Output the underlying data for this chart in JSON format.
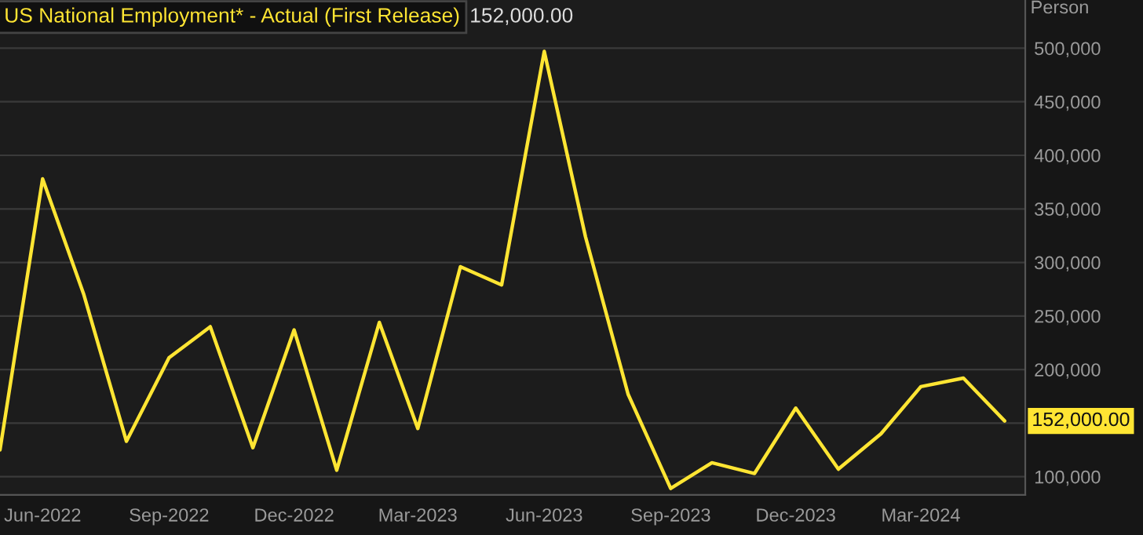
{
  "chart_data": {
    "type": "line",
    "title": "US National Employment* - Actual (First Release)",
    "subtitle": "152,000.00",
    "ylabel": "Person",
    "x": [
      "2022-05",
      "2022-06",
      "2022-07",
      "2022-08",
      "2022-09",
      "2022-10",
      "2022-11",
      "2022-12",
      "2023-01",
      "2023-02",
      "2023-03",
      "2023-04",
      "2023-05",
      "2023-06",
      "2023-07",
      "2023-08",
      "2023-09",
      "2023-10",
      "2023-11",
      "2023-12",
      "2024-01",
      "2024-02",
      "2024-03",
      "2024-04",
      "2024-05"
    ],
    "series": [
      {
        "color": "#ffe533",
        "values": [
          125000,
          378000,
          270000,
          133000,
          211000,
          240000,
          127000,
          237000,
          106000,
          244000,
          145000,
          296000,
          279000,
          497000,
          324000,
          177000,
          89000,
          113000,
          103000,
          164000,
          107000,
          140000,
          184000,
          192000,
          152000
        ]
      }
    ],
    "annotations": [
      {
        "text": "152,000.00",
        "x": "2024-05",
        "y": 152000
      }
    ],
    "xlim": [
      "2022-05-01",
      "2024-05-16"
    ],
    "ylim": [
      83000,
      545000
    ],
    "xticks": [
      {
        "value": "2022-06",
        "label": "Jun-2022"
      },
      {
        "value": "2022-09",
        "label": "Sep-2022"
      },
      {
        "value": "2022-12",
        "label": "Dec-2022"
      },
      {
        "value": "2023-03",
        "label": "Mar-2023"
      },
      {
        "value": "2023-06",
        "label": "Jun-2023"
      },
      {
        "value": "2023-09",
        "label": "Sep-2023"
      },
      {
        "value": "2023-12",
        "label": "Dec-2023"
      },
      {
        "value": "2024-03",
        "label": "Mar-2024"
      }
    ],
    "yticks": [
      {
        "value": 100000,
        "label": "100,000"
      },
      {
        "value": 150000,
        "label": null
      },
      {
        "value": 200000,
        "label": "200,000"
      },
      {
        "value": 250000,
        "label": "250,000"
      },
      {
        "value": 300000,
        "label": "300,000"
      },
      {
        "value": 350000,
        "label": "350,000"
      },
      {
        "value": 400000,
        "label": "400,000"
      },
      {
        "value": 450000,
        "label": "450,000"
      },
      {
        "value": 500000,
        "label": "500,000"
      }
    ],
    "grid": "y",
    "marker": "none",
    "line_style": "solid"
  }
}
